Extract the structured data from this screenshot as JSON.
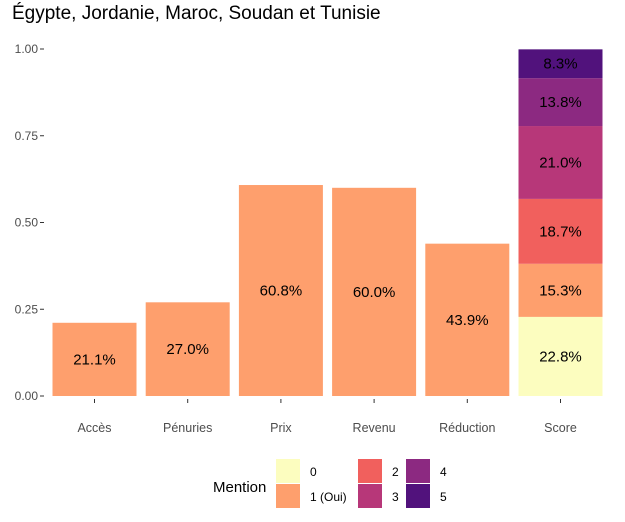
{
  "chart_data": {
    "type": "bar",
    "title": "Égypte, Jordanie, Maroc, Soudan et Tunisie",
    "xlabel": "",
    "ylabel": "",
    "ylim": [
      0,
      1.0
    ],
    "y_ticks": [
      "0.00",
      "0.25",
      "0.50",
      "0.75",
      "1.00"
    ],
    "y_tick_values": [
      0,
      0.25,
      0.5,
      0.75,
      1.0
    ],
    "grid": false,
    "legend": {
      "title": "Mention",
      "position": "bottom",
      "items": [
        {
          "label": "0",
          "color": "#FCFDBF"
        },
        {
          "label": "1 (Oui)",
          "color": "#FE9F6D"
        },
        {
          "label": "2",
          "color": "#F1605D"
        },
        {
          "label": "3",
          "color": "#B73779"
        },
        {
          "label": "4",
          "color": "#8C2981"
        },
        {
          "label": "5",
          "color": "#51127C"
        }
      ]
    },
    "bars": [
      {
        "category": "Accès",
        "segments": [
          {
            "mention": "1 (Oui)",
            "value": 0.211,
            "label": "21.1%"
          }
        ]
      },
      {
        "category": "Pénuries",
        "segments": [
          {
            "mention": "1 (Oui)",
            "value": 0.27,
            "label": "27.0%"
          }
        ]
      },
      {
        "category": "Prix",
        "segments": [
          {
            "mention": "1 (Oui)",
            "value": 0.608,
            "label": "60.8%"
          }
        ]
      },
      {
        "category": "Revenu",
        "segments": [
          {
            "mention": "1 (Oui)",
            "value": 0.6,
            "label": "60.0%"
          }
        ]
      },
      {
        "category": "Réduction",
        "segments": [
          {
            "mention": "1 (Oui)",
            "value": 0.439,
            "label": "43.9%"
          }
        ]
      },
      {
        "category": "Score",
        "segments": [
          {
            "mention": "0",
            "value": 0.228,
            "label": "22.8%"
          },
          {
            "mention": "1 (Oui)",
            "value": 0.153,
            "label": "15.3%"
          },
          {
            "mention": "2",
            "value": 0.187,
            "label": "18.7%"
          },
          {
            "mention": "3",
            "value": 0.21,
            "label": "21.0%"
          },
          {
            "mention": "4",
            "value": 0.138,
            "label": "13.8%"
          },
          {
            "mention": "5",
            "value": 0.083,
            "label": "8.3%"
          }
        ]
      }
    ]
  }
}
